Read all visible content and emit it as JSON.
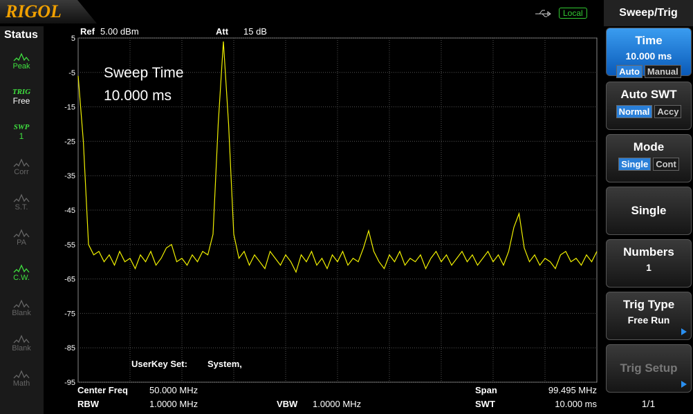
{
  "header": {
    "logo": "RIGOL",
    "remote": "Local"
  },
  "status": {
    "title": "Status",
    "items": [
      {
        "label": "Peak",
        "active": true
      },
      {
        "label": "TRIG",
        "value": "Free",
        "active": true
      },
      {
        "label": "SWP",
        "value": "1",
        "active": true
      },
      {
        "label": "Corr",
        "active": false
      },
      {
        "label": "S.T.",
        "active": false
      },
      {
        "label": "PA",
        "active": false
      },
      {
        "label": "C.W.",
        "active": true
      },
      {
        "label": "Blank",
        "active": false
      },
      {
        "label": "Blank",
        "active": false
      },
      {
        "label": "Math",
        "active": false
      }
    ]
  },
  "display": {
    "ref_label": "Ref",
    "ref_value": "5.00 dBm",
    "att_label": "Att",
    "att_value": "15 dB",
    "overlay_title": "Sweep Time",
    "overlay_value": "10.000 ms",
    "userkey_label": "UserKey Set:",
    "userkey_value": "System,",
    "footer": {
      "center_label": "Center Freq",
      "center_value": "50.000 MHz",
      "span_label": "Span",
      "span_value": "99.495 MHz",
      "rbw_label": "RBW",
      "rbw_value": "1.0000 MHz",
      "vbw_label": "VBW",
      "vbw_value": "1.0000 MHz",
      "swt_label": "SWT",
      "swt_value": "10.000 ms"
    }
  },
  "trace": {
    "type": "line",
    "color": "#f2f200",
    "grid": true,
    "ylim": [
      -95,
      5
    ],
    "yticks": [
      5,
      -5,
      -15,
      -25,
      -35,
      -45,
      -55,
      -65,
      -75,
      -85,
      -95
    ],
    "values": [
      -6,
      -25,
      -55,
      -58,
      -57,
      -60,
      -58,
      -61,
      -57,
      -60,
      -59,
      -62,
      -58,
      -60,
      -57,
      -61,
      -59,
      -56,
      -55,
      -60,
      -59,
      -61,
      -58,
      -60,
      -57,
      -58,
      -52,
      -20,
      4,
      -20,
      -52,
      -59,
      -57,
      -61,
      -58,
      -60,
      -62,
      -57,
      -59,
      -61,
      -58,
      -60,
      -63,
      -58,
      -60,
      -57,
      -61,
      -59,
      -62,
      -58,
      -60,
      -57,
      -61,
      -59,
      -60,
      -56,
      -51,
      -57,
      -60,
      -62,
      -58,
      -60,
      -57,
      -61,
      -59,
      -60,
      -58,
      -62,
      -59,
      -57,
      -60,
      -58,
      -61,
      -59,
      -57,
      -60,
      -58,
      -61,
      -59,
      -57,
      -60,
      -58,
      -61,
      -57,
      -50,
      -46,
      -56,
      -60,
      -58,
      -61,
      -59,
      -60,
      -62,
      -58,
      -57,
      -60,
      -59,
      -61,
      -58,
      -60,
      -57
    ]
  },
  "menu": {
    "title": "Sweep/Trig",
    "page": "1/1",
    "items": [
      {
        "title": "Time",
        "value": "10.000 ms",
        "options": [
          "Auto",
          "Manual"
        ],
        "selected": 0,
        "highlight": true
      },
      {
        "title": "Auto SWT",
        "options": [
          "Normal",
          "Accy"
        ],
        "selected": 0
      },
      {
        "title": "Mode",
        "options": [
          "Single",
          "Cont"
        ],
        "selected": 0
      },
      {
        "title": "Single"
      },
      {
        "title": "Numbers",
        "value": "1"
      },
      {
        "title": "Trig Type",
        "value": "Free Run",
        "arrow": true
      },
      {
        "title": "Trig Setup",
        "arrow": true,
        "disabled": true
      }
    ]
  }
}
